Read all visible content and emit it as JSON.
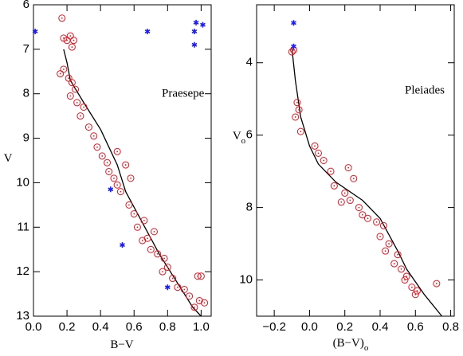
{
  "chart_data": [
    {
      "type": "scatter",
      "xlabel": "B−V",
      "ylabel": "V",
      "annotation": "Praesepe",
      "xlim": [
        0,
        1.06
      ],
      "ylim": [
        13,
        6
      ],
      "y_inverted": true,
      "xticks": [
        {
          "value": 0,
          "label": "0.0"
        },
        {
          "value": 0.2,
          "label": "0.2"
        },
        {
          "value": 0.4,
          "label": "0.4"
        },
        {
          "value": 0.6,
          "label": "0.6"
        },
        {
          "value": 0.8,
          "label": "0.8"
        },
        {
          "value": 1,
          "label": "1.0"
        }
      ],
      "yticks": [
        6,
        7,
        8,
        9,
        10,
        11,
        12,
        13
      ],
      "series": [
        {
          "marker": "line",
          "color": "#000000",
          "x": [
            0.18,
            0.2,
            0.22,
            0.3,
            0.4,
            0.5,
            0.55,
            0.65,
            0.75,
            0.85,
            0.95,
            1.0
          ],
          "values": [
            7.0,
            7.3,
            7.7,
            8.2,
            8.8,
            9.6,
            10.2,
            10.9,
            11.6,
            12.2,
            12.8,
            13.0
          ]
        },
        {
          "marker": "circle",
          "color": "#e8141e",
          "x": [
            0.17,
            0.18,
            0.2,
            0.22,
            0.24,
            0.23,
            0.16,
            0.18,
            0.21,
            0.23,
            0.25,
            0.22,
            0.26,
            0.3,
            0.28,
            0.33,
            0.36,
            0.38,
            0.41,
            0.44,
            0.5,
            0.45,
            0.48,
            0.5,
            0.52,
            0.55,
            0.58,
            0.57,
            0.6,
            0.62,
            0.66,
            0.65,
            0.68,
            0.72,
            0.7,
            0.74,
            0.78,
            0.8,
            0.77,
            0.83,
            0.86,
            0.9,
            0.93,
            0.98,
            1.0,
            0.99,
            1.02,
            0.96
          ],
          "values": [
            6.3,
            6.75,
            6.8,
            6.7,
            6.8,
            6.95,
            7.55,
            7.45,
            7.65,
            7.75,
            7.9,
            8.05,
            8.2,
            8.3,
            8.5,
            8.75,
            8.95,
            9.2,
            9.4,
            9.55,
            9.3,
            9.75,
            9.9,
            10.05,
            10.2,
            9.6,
            9.9,
            10.5,
            10.7,
            11.0,
            10.85,
            11.3,
            11.25,
            11.1,
            11.5,
            11.6,
            11.7,
            11.9,
            12.0,
            12.15,
            12.35,
            12.4,
            12.55,
            12.1,
            12.1,
            12.65,
            12.7,
            12.8
          ]
        },
        {
          "marker": "star",
          "color": "#1a1aff",
          "x": [
            0.01,
            0.68,
            0.97,
            1.01,
            0.96,
            0.96,
            0.46,
            0.53,
            0.8
          ],
          "values": [
            6.6,
            6.6,
            6.4,
            6.45,
            6.6,
            6.9,
            10.15,
            11.4,
            12.35
          ]
        }
      ]
    },
    {
      "type": "scatter",
      "xlabel": "(B−V)",
      "xlabel_subscript": "o",
      "ylabel": "V",
      "ylabel_subscript": "o",
      "annotation": "Pleiades",
      "xlim": [
        -0.3,
        0.82
      ],
      "ylim": [
        11,
        2.4
      ],
      "y_inverted": true,
      "xticks": [
        {
          "value": -0.2,
          "label": "−0.2"
        },
        {
          "value": 0,
          "label": "0.0"
        },
        {
          "value": 0.2,
          "label": "0.2"
        },
        {
          "value": 0.4,
          "label": "0.4"
        },
        {
          "value": 0.6,
          "label": "0.6"
        },
        {
          "value": 0.8,
          "label": "0.8"
        }
      ],
      "yticks": [
        4,
        6,
        8,
        10
      ],
      "series": [
        {
          "marker": "line",
          "color": "#000000",
          "x": [
            -0.1,
            -0.08,
            -0.05,
            0,
            0.05,
            0.15,
            0.3,
            0.4,
            0.5,
            0.55,
            0.65,
            0.75
          ],
          "values": [
            3.6,
            4.5,
            5.5,
            6.3,
            6.8,
            7.3,
            7.8,
            8.3,
            9.2,
            9.7,
            10.4,
            11.0
          ]
        },
        {
          "marker": "circle",
          "color": "#e8141e",
          "x": [
            -0.1,
            -0.09,
            -0.07,
            -0.06,
            -0.08,
            -0.05,
            0.03,
            0.05,
            0.08,
            0.12,
            0.22,
            0.25,
            0.14,
            0.2,
            0.18,
            0.23,
            0.28,
            0.3,
            0.33,
            0.38,
            0.42,
            0.4,
            0.45,
            0.43,
            0.5,
            0.48,
            0.52,
            0.55,
            0.54,
            0.58,
            0.61,
            0.6,
            0.72
          ],
          "values": [
            3.7,
            3.65,
            5.1,
            5.3,
            5.5,
            5.9,
            6.3,
            6.5,
            6.7,
            7.0,
            6.9,
            7.2,
            7.4,
            7.6,
            7.85,
            7.8,
            8.0,
            8.2,
            8.3,
            8.4,
            8.5,
            8.8,
            9.0,
            9.2,
            9.3,
            9.55,
            9.7,
            9.9,
            10.0,
            10.2,
            10.3,
            10.4,
            10.1
          ]
        },
        {
          "marker": "star",
          "color": "#1a1aff",
          "x": [
            -0.09,
            -0.09
          ],
          "values": [
            2.9,
            3.55
          ]
        }
      ]
    }
  ]
}
